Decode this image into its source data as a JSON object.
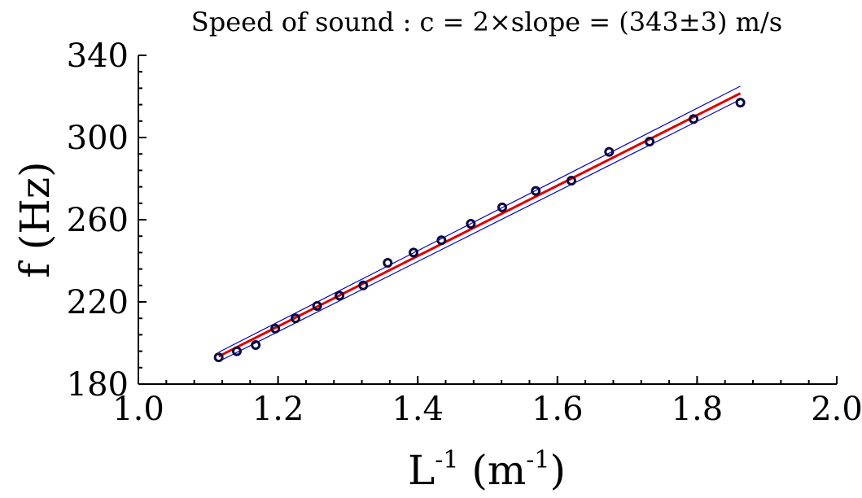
{
  "chart_data": {
    "type": "scatter",
    "title": "Speed of sound :  c = 2×slope = (343±3) m/s",
    "xlabel": "L",
    "xlabel_sup": "-1",
    "xlabel_unit_open": " (m",
    "xlabel_unit_sup": "-1",
    "xlabel_unit_close": ")",
    "ylabel": "f (Hz)",
    "xlim": [
      1.0,
      2.0
    ],
    "ylim": [
      180,
      340
    ],
    "x_ticks": [
      1.0,
      1.2,
      1.4,
      1.6,
      1.8,
      2.0
    ],
    "x_tick_labels": [
      "1.0",
      "1.2",
      "1.4",
      "1.6",
      "1.8",
      "2.0"
    ],
    "y_ticks": [
      180,
      220,
      260,
      300,
      340
    ],
    "y_tick_labels": [
      "180",
      "220",
      "260",
      "300",
      "340"
    ],
    "x_minor_step": 0.04,
    "y_minor_step": 8,
    "grid": false,
    "points": {
      "x": [
        1.115,
        1.141,
        1.168,
        1.196,
        1.225,
        1.256,
        1.288,
        1.322,
        1.357,
        1.394,
        1.434,
        1.476,
        1.521,
        1.569,
        1.62,
        1.674,
        1.732,
        1.795,
        1.862
      ],
      "y": [
        193,
        196,
        199,
        207,
        212,
        218,
        223,
        228,
        239,
        244,
        250,
        258,
        266,
        274,
        279,
        293,
        298,
        309,
        317
      ],
      "color": "#0a0a40"
    },
    "fit_line": {
      "x": [
        1.115,
        1.862
      ],
      "y": [
        193.5,
        321.5
      ],
      "color": "#dd0000"
    },
    "bound_lines": [
      {
        "x": [
          1.115,
          1.862
        ],
        "y": [
          195.5,
          325.0
        ],
        "color": "#0000cc"
      },
      {
        "x": [
          1.115,
          1.862
        ],
        "y": [
          191.0,
          318.5
        ],
        "color": "#0000cc"
      }
    ]
  }
}
